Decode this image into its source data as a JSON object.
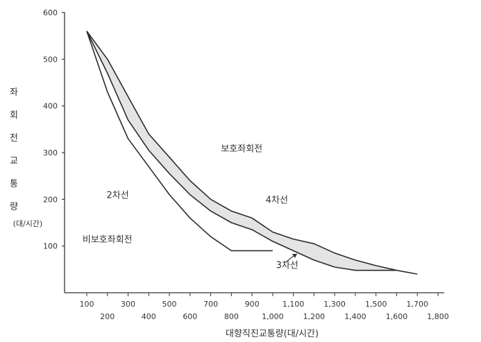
{
  "chart_data": {
    "type": "line",
    "title": "",
    "xlabel": "대향직진교통량(대/시간)",
    "ylabel_chars": [
      "좌",
      "회",
      "전",
      "교",
      "통",
      "량"
    ],
    "ylabel_unit": "(대/시간)",
    "xlim": [
      100,
      1800
    ],
    "ylim": [
      0,
      600
    ],
    "x_ticks_upper": [
      "100",
      "300",
      "500",
      "700",
      "900",
      "1,100",
      "1,300",
      "1,500",
      "1,700"
    ],
    "x_ticks_lower": [
      "200",
      "400",
      "600",
      "800",
      "1,000",
      "1,200",
      "1,400",
      "1,600",
      "1,800"
    ],
    "y_ticks": [
      "100",
      "200",
      "300",
      "400",
      "500",
      "600"
    ],
    "grid": false,
    "series": [
      {
        "name": "2차선",
        "x": [
          100,
          200,
          300,
          400,
          500,
          600,
          700,
          800,
          900,
          1000
        ],
        "y": [
          560,
          430,
          330,
          270,
          210,
          160,
          120,
          90,
          90,
          90
        ]
      },
      {
        "name": "4차선",
        "x": [
          100,
          200,
          300,
          400,
          500,
          600,
          700,
          800,
          900,
          1000,
          1100,
          1200,
          1300,
          1400,
          1500,
          1600,
          1700
        ],
        "y": [
          560,
          500,
          420,
          340,
          290,
          240,
          200,
          175,
          160,
          130,
          115,
          105,
          85,
          70,
          58,
          48,
          40
        ]
      },
      {
        "name": "3차선",
        "x": [
          100,
          200,
          300,
          400,
          500,
          600,
          700,
          800,
          900,
          1000,
          1100,
          1200,
          1300,
          1400,
          1500,
          1600
        ],
        "y": [
          560,
          470,
          370,
          305,
          255,
          210,
          175,
          150,
          135,
          110,
          90,
          70,
          55,
          48,
          48,
          48
        ]
      }
    ],
    "annotations": [
      {
        "text": "2차선",
        "x": 250,
        "y": 210
      },
      {
        "text": "4차선",
        "x": 1020,
        "y": 200
      },
      {
        "text": "3차선",
        "x": 1070,
        "y": 60
      },
      {
        "text": "보호좌회전",
        "x": 850,
        "y": 310
      },
      {
        "text": "비보호좌회전",
        "x": 200,
        "y": 115
      }
    ]
  }
}
